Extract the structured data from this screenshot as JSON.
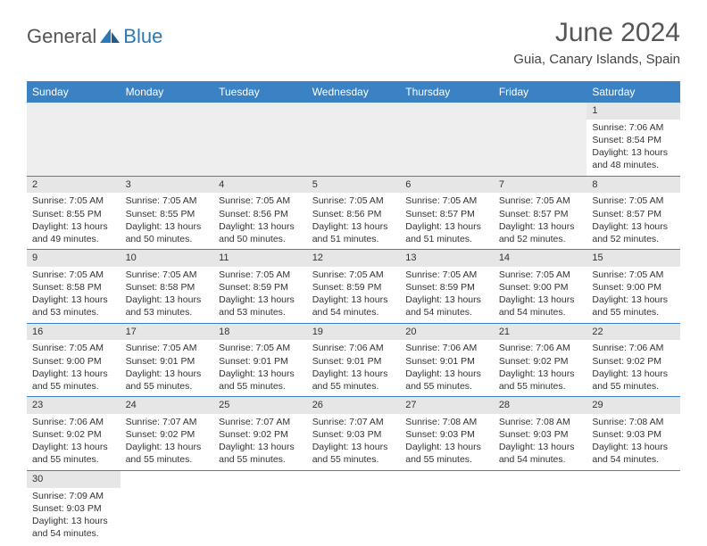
{
  "logo": {
    "part1": "General",
    "part2": "Blue"
  },
  "title": "June 2024",
  "location": "Guia, Canary Islands, Spain",
  "colors": {
    "header_bg": "#3b82c4",
    "header_text": "#ffffff",
    "daynum_bg": "#e6e6e6",
    "border": "#3b82c4",
    "logo_accent": "#2a7ab8",
    "text": "#333333"
  },
  "dayHeaders": [
    "Sunday",
    "Monday",
    "Tuesday",
    "Wednesday",
    "Thursday",
    "Friday",
    "Saturday"
  ],
  "weeks": [
    [
      null,
      null,
      null,
      null,
      null,
      null,
      {
        "n": "1",
        "sr": "7:06 AM",
        "ss": "8:54 PM",
        "dl": "13 hours and 48 minutes."
      }
    ],
    [
      {
        "n": "2",
        "sr": "7:05 AM",
        "ss": "8:55 PM",
        "dl": "13 hours and 49 minutes."
      },
      {
        "n": "3",
        "sr": "7:05 AM",
        "ss": "8:55 PM",
        "dl": "13 hours and 50 minutes."
      },
      {
        "n": "4",
        "sr": "7:05 AM",
        "ss": "8:56 PM",
        "dl": "13 hours and 50 minutes."
      },
      {
        "n": "5",
        "sr": "7:05 AM",
        "ss": "8:56 PM",
        "dl": "13 hours and 51 minutes."
      },
      {
        "n": "6",
        "sr": "7:05 AM",
        "ss": "8:57 PM",
        "dl": "13 hours and 51 minutes."
      },
      {
        "n": "7",
        "sr": "7:05 AM",
        "ss": "8:57 PM",
        "dl": "13 hours and 52 minutes."
      },
      {
        "n": "8",
        "sr": "7:05 AM",
        "ss": "8:57 PM",
        "dl": "13 hours and 52 minutes."
      }
    ],
    [
      {
        "n": "9",
        "sr": "7:05 AM",
        "ss": "8:58 PM",
        "dl": "13 hours and 53 minutes."
      },
      {
        "n": "10",
        "sr": "7:05 AM",
        "ss": "8:58 PM",
        "dl": "13 hours and 53 minutes."
      },
      {
        "n": "11",
        "sr": "7:05 AM",
        "ss": "8:59 PM",
        "dl": "13 hours and 53 minutes."
      },
      {
        "n": "12",
        "sr": "7:05 AM",
        "ss": "8:59 PM",
        "dl": "13 hours and 54 minutes."
      },
      {
        "n": "13",
        "sr": "7:05 AM",
        "ss": "8:59 PM",
        "dl": "13 hours and 54 minutes."
      },
      {
        "n": "14",
        "sr": "7:05 AM",
        "ss": "9:00 PM",
        "dl": "13 hours and 54 minutes."
      },
      {
        "n": "15",
        "sr": "7:05 AM",
        "ss": "9:00 PM",
        "dl": "13 hours and 55 minutes."
      }
    ],
    [
      {
        "n": "16",
        "sr": "7:05 AM",
        "ss": "9:00 PM",
        "dl": "13 hours and 55 minutes."
      },
      {
        "n": "17",
        "sr": "7:05 AM",
        "ss": "9:01 PM",
        "dl": "13 hours and 55 minutes."
      },
      {
        "n": "18",
        "sr": "7:05 AM",
        "ss": "9:01 PM",
        "dl": "13 hours and 55 minutes."
      },
      {
        "n": "19",
        "sr": "7:06 AM",
        "ss": "9:01 PM",
        "dl": "13 hours and 55 minutes."
      },
      {
        "n": "20",
        "sr": "7:06 AM",
        "ss": "9:01 PM",
        "dl": "13 hours and 55 minutes."
      },
      {
        "n": "21",
        "sr": "7:06 AM",
        "ss": "9:02 PM",
        "dl": "13 hours and 55 minutes."
      },
      {
        "n": "22",
        "sr": "7:06 AM",
        "ss": "9:02 PM",
        "dl": "13 hours and 55 minutes."
      }
    ],
    [
      {
        "n": "23",
        "sr": "7:06 AM",
        "ss": "9:02 PM",
        "dl": "13 hours and 55 minutes."
      },
      {
        "n": "24",
        "sr": "7:07 AM",
        "ss": "9:02 PM",
        "dl": "13 hours and 55 minutes."
      },
      {
        "n": "25",
        "sr": "7:07 AM",
        "ss": "9:02 PM",
        "dl": "13 hours and 55 minutes."
      },
      {
        "n": "26",
        "sr": "7:07 AM",
        "ss": "9:03 PM",
        "dl": "13 hours and 55 minutes."
      },
      {
        "n": "27",
        "sr": "7:08 AM",
        "ss": "9:03 PM",
        "dl": "13 hours and 55 minutes."
      },
      {
        "n": "28",
        "sr": "7:08 AM",
        "ss": "9:03 PM",
        "dl": "13 hours and 54 minutes."
      },
      {
        "n": "29",
        "sr": "7:08 AM",
        "ss": "9:03 PM",
        "dl": "13 hours and 54 minutes."
      }
    ],
    [
      {
        "n": "30",
        "sr": "7:09 AM",
        "ss": "9:03 PM",
        "dl": "13 hours and 54 minutes."
      },
      null,
      null,
      null,
      null,
      null,
      null
    ]
  ],
  "labels": {
    "sunrise": "Sunrise:",
    "sunset": "Sunset:",
    "daylight": "Daylight:"
  }
}
